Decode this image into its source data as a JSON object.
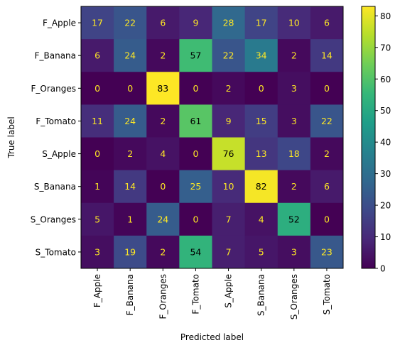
{
  "chart_data": {
    "type": "heatmap",
    "title": "",
    "xlabel": "Predicted label",
    "ylabel": "True label",
    "x_categories": [
      "F_Apple",
      "F_Banana",
      "F_Oranges",
      "F_Tomato",
      "S_Apple",
      "S_Banana",
      "S_Oranges",
      "S_Tomato"
    ],
    "y_categories": [
      "F_Apple",
      "F_Banana",
      "F_Oranges",
      "F_Tomato",
      "S_Apple",
      "S_Banana",
      "S_Oranges",
      "S_Tomato"
    ],
    "values": [
      [
        17,
        22,
        6,
        9,
        28,
        17,
        10,
        6
      ],
      [
        6,
        24,
        2,
        57,
        22,
        34,
        2,
        14
      ],
      [
        0,
        0,
        83,
        0,
        2,
        0,
        3,
        0
      ],
      [
        11,
        24,
        2,
        61,
        9,
        15,
        3,
        22
      ],
      [
        0,
        2,
        4,
        0,
        76,
        13,
        18,
        2
      ],
      [
        1,
        14,
        0,
        25,
        10,
        82,
        2,
        6
      ],
      [
        5,
        1,
        24,
        0,
        7,
        4,
        52,
        0
      ],
      [
        3,
        19,
        2,
        54,
        7,
        5,
        3,
        23
      ]
    ],
    "colormap": "viridis",
    "value_range": [
      0,
      83
    ],
    "colorbar_ticks": [
      0,
      10,
      20,
      30,
      40,
      50,
      60,
      70,
      80
    ],
    "text_color_dark_cells": "#fde725",
    "text_color_bright_cells": "#000000",
    "grid": false,
    "colorbar_position": "right"
  }
}
